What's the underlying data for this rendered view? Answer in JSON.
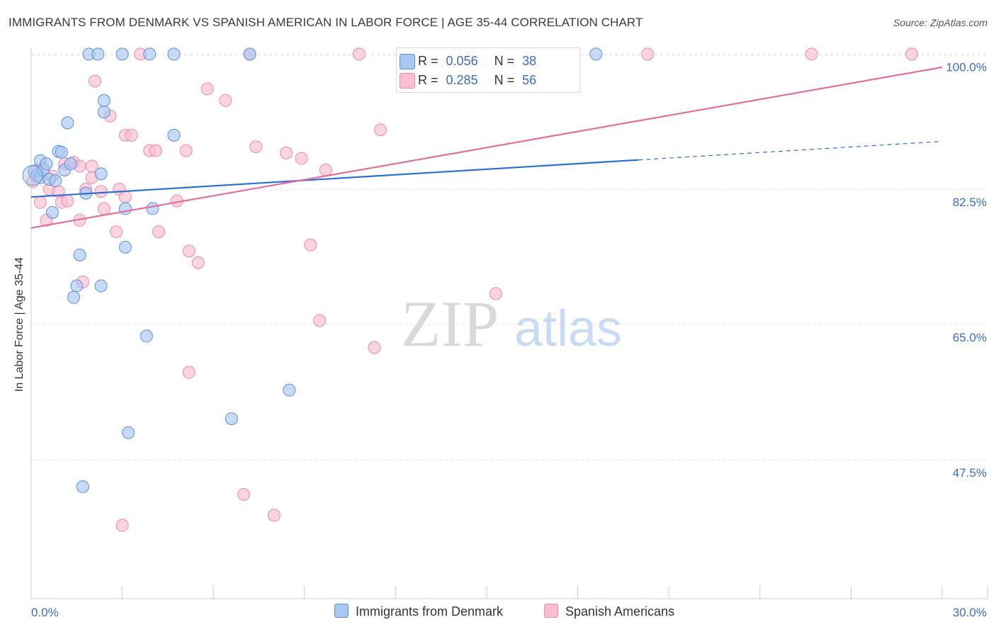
{
  "title": "IMMIGRANTS FROM DENMARK VS SPANISH AMERICAN IN LABOR FORCE | AGE 35-44 CORRELATION CHART",
  "source": "Source: ZipAtlas.com",
  "watermark": {
    "zip": "ZIP",
    "atlas": "atlas"
  },
  "legend": {
    "r_label": "R =",
    "n_label": "N =",
    "series1": {
      "r": "0.056",
      "n": "38"
    },
    "series2": {
      "r": "0.285",
      "n": "56"
    }
  },
  "colors": {
    "blue_fill": "#a9c8f0",
    "blue_stroke": "#5b8ed8",
    "blue_line": "#2f6fd0",
    "pink_fill": "#f7bfd1",
    "pink_stroke": "#e88aa8",
    "pink_line": "#e0709a",
    "tick_text": "#3b6cc4"
  },
  "chart_data": {
    "type": "scatter",
    "title": "IMMIGRANTS FROM DENMARK VS SPANISH AMERICAN IN LABOR FORCE | AGE 35-44 CORRELATION CHART",
    "xlabel": "",
    "ylabel": "In Labor Force | Age 35-44",
    "xlim": [
      0,
      30
    ],
    "ylim": [
      29.5,
      101.5
    ],
    "x_tick_labels": [
      "0.0%",
      "30.0%"
    ],
    "y_ticks": [
      100,
      82.5,
      65,
      47.5
    ],
    "y_tick_labels": [
      "100.0%",
      "82.5%",
      "65.0%",
      "47.5%"
    ],
    "series": [
      {
        "name": "Immigrants from Denmark",
        "r": 0.056,
        "n": 38,
        "trend": {
          "x0": 0,
          "y0": 81.5,
          "x1": 20,
          "y1": 86.3,
          "dash_x1": 30,
          "dash_y1": 88.7
        },
        "points": [
          [
            0.1,
            84.8
          ],
          [
            0.2,
            84.3
          ],
          [
            0.3,
            84.0
          ],
          [
            0.3,
            86.2
          ],
          [
            0.4,
            85.0
          ],
          [
            0.5,
            85.8
          ],
          [
            0.6,
            83.8
          ],
          [
            0.7,
            79.5
          ],
          [
            0.8,
            83.6
          ],
          [
            0.9,
            87.4
          ],
          [
            1.0,
            87.3
          ],
          [
            1.1,
            85.0
          ],
          [
            1.2,
            91.1
          ],
          [
            1.3,
            85.8
          ],
          [
            1.4,
            68.5
          ],
          [
            1.5,
            70.0
          ],
          [
            1.6,
            74.0
          ],
          [
            1.7,
            44.0
          ],
          [
            1.8,
            82.0
          ],
          [
            1.9,
            100.0
          ],
          [
            2.3,
            70.0
          ],
          [
            2.2,
            100.0
          ],
          [
            2.4,
            94.0
          ],
          [
            2.3,
            84.5
          ],
          [
            2.4,
            92.5
          ],
          [
            3.0,
            100.0
          ],
          [
            3.1,
            75.0
          ],
          [
            3.1,
            80.0
          ],
          [
            3.2,
            51.0
          ],
          [
            3.8,
            63.5
          ],
          [
            3.9,
            100.0
          ],
          [
            4.0,
            80.0
          ],
          [
            4.7,
            100.0
          ],
          [
            4.7,
            89.5
          ],
          [
            6.6,
            52.8
          ],
          [
            7.2,
            100.0
          ],
          [
            8.5,
            56.5
          ],
          [
            18.6,
            100.0
          ]
        ]
      },
      {
        "name": "Spanish Americans",
        "r": 0.285,
        "n": 56,
        "trend": {
          "x0": 0,
          "y0": 77.5,
          "x1": 30,
          "y1": 98.3
        },
        "points": [
          [
            0.05,
            83.5
          ],
          [
            0.15,
            84.2
          ],
          [
            0.2,
            85.0
          ],
          [
            0.3,
            80.8
          ],
          [
            0.4,
            85.2
          ],
          [
            0.5,
            78.5
          ],
          [
            0.6,
            82.5
          ],
          [
            0.7,
            84.2
          ],
          [
            0.9,
            82.2
          ],
          [
            1.0,
            80.8
          ],
          [
            1.1,
            85.8
          ],
          [
            1.2,
            81.0
          ],
          [
            1.4,
            86.0
          ],
          [
            1.6,
            85.5
          ],
          [
            1.6,
            78.5
          ],
          [
            1.7,
            70.5
          ],
          [
            1.8,
            82.5
          ],
          [
            2.0,
            84.0
          ],
          [
            2.0,
            85.5
          ],
          [
            2.1,
            96.5
          ],
          [
            2.3,
            82.2
          ],
          [
            2.4,
            80.0
          ],
          [
            2.6,
            92.0
          ],
          [
            2.8,
            77.0
          ],
          [
            2.9,
            82.5
          ],
          [
            3.0,
            39.0
          ],
          [
            3.1,
            89.5
          ],
          [
            3.1,
            81.5
          ],
          [
            3.3,
            89.5
          ],
          [
            3.6,
            100.0
          ],
          [
            3.9,
            87.5
          ],
          [
            4.1,
            87.5
          ],
          [
            4.2,
            77.0
          ],
          [
            4.8,
            81.0
          ],
          [
            5.1,
            87.5
          ],
          [
            5.2,
            58.8
          ],
          [
            5.2,
            74.5
          ],
          [
            5.5,
            73.0
          ],
          [
            5.8,
            95.5
          ],
          [
            6.4,
            94.0
          ],
          [
            7.0,
            43.0
          ],
          [
            7.2,
            100.0
          ],
          [
            7.4,
            88.0
          ],
          [
            8.0,
            40.3
          ],
          [
            8.4,
            87.2
          ],
          [
            8.9,
            86.5
          ],
          [
            9.2,
            75.3
          ],
          [
            9.5,
            65.5
          ],
          [
            9.7,
            85.0
          ],
          [
            10.8,
            100.0
          ],
          [
            11.3,
            62.0
          ],
          [
            11.5,
            90.2
          ],
          [
            15.3,
            69.0
          ],
          [
            20.3,
            100.0
          ],
          [
            25.7,
            100.0
          ],
          [
            29.0,
            100.0
          ]
        ]
      }
    ]
  }
}
